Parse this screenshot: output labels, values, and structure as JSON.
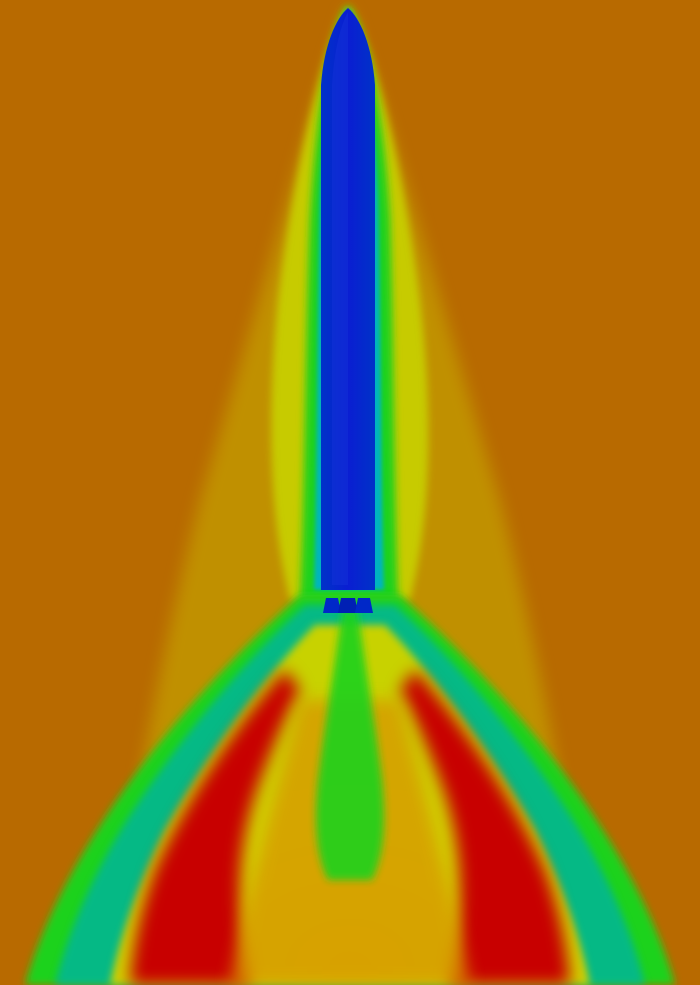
{
  "image": {
    "subject": "rocket-flow-visualization",
    "colormap": {
      "background": "#b86a00",
      "low": "#0028c8",
      "low_edge": "#0050d8",
      "mid_low": "#00b4c0",
      "mid": "#1ed21e",
      "mid_high": "#c8d200",
      "high": "#d7a000",
      "peak": "#c80000"
    }
  }
}
